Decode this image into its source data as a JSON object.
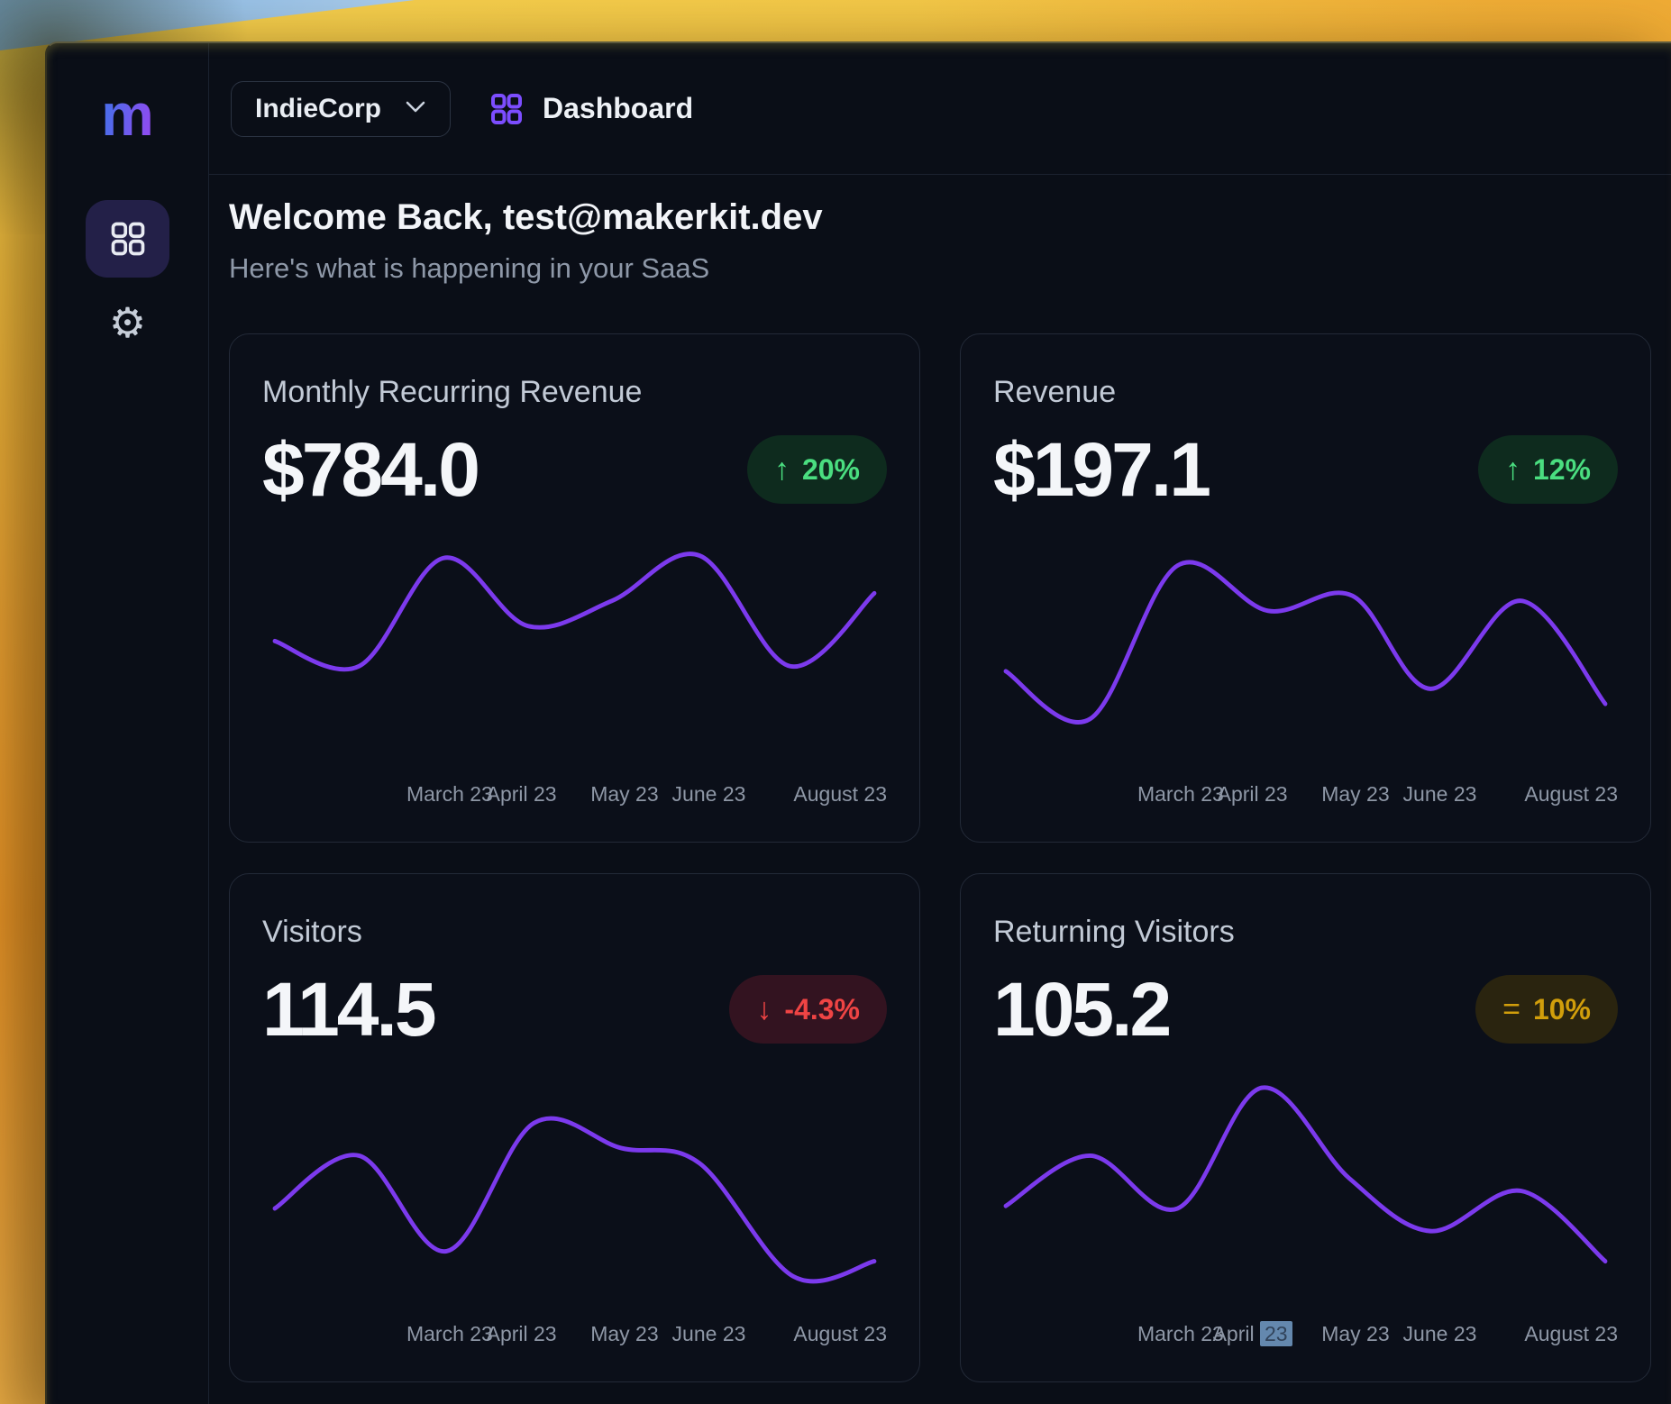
{
  "sidebar": {
    "logo": "m",
    "nav": [
      {
        "id": "dashboard",
        "active": true
      },
      {
        "id": "settings",
        "active": false
      }
    ]
  },
  "topbar": {
    "team_selector": {
      "label": "IndieCorp"
    },
    "page": {
      "label": "Dashboard"
    }
  },
  "header": {
    "title": "Welcome Back, test@makerkit.dev",
    "subtitle": "Here's what is happening in your SaaS"
  },
  "theme": {
    "line_color": "#7c3aed",
    "accent_purple": "#7c4dff",
    "badge_up_fg": "#4ade80",
    "badge_up_bg": "#0e2b1e",
    "badge_down_fg": "#ef4444",
    "badge_down_bg": "#331320",
    "badge_flat_fg": "#d19e0b",
    "badge_flat_bg": "#2a240f",
    "tick_selection_bg": "#6488ae"
  },
  "chart_data": [
    {
      "type": "line",
      "title": "Monthly Recurring Revenue",
      "value": "$784.0",
      "badge": {
        "label": "20%",
        "trend": "up"
      },
      "x_tick_labels": [
        {
          "text": "March 23",
          "pos_pct": 30
        },
        {
          "text": "April 23",
          "pos_pct": 41.5
        },
        {
          "text": "May 23",
          "pos_pct": 58
        },
        {
          "text": "June 23",
          "pos_pct": 71.5
        },
        {
          "text": "August 23",
          "pos_pct": null
        }
      ],
      "points": [
        {
          "x_pct": 2,
          "v": 54
        },
        {
          "x_pct": 15.5,
          "v": 44
        },
        {
          "x_pct": 29,
          "v": 87
        },
        {
          "x_pct": 42.5,
          "v": 60
        },
        {
          "x_pct": 56,
          "v": 70
        },
        {
          "x_pct": 70,
          "v": 88
        },
        {
          "x_pct": 84.5,
          "v": 44
        },
        {
          "x_pct": 98,
          "v": 73
        }
      ],
      "value_scale_note": "normalized 0-100, no y-axis shown"
    },
    {
      "type": "line",
      "title": "Revenue",
      "value": "$197.1",
      "badge": {
        "label": "12%",
        "trend": "up"
      },
      "x_tick_labels": [
        {
          "text": "March 23",
          "pos_pct": 30
        },
        {
          "text": "April 23",
          "pos_pct": 41.5
        },
        {
          "text": "May 23",
          "pos_pct": 58
        },
        {
          "text": "June 23",
          "pos_pct": 71.5
        },
        {
          "text": "August 23",
          "pos_pct": null
        }
      ],
      "points": [
        {
          "x_pct": 2,
          "v": 42
        },
        {
          "x_pct": 15.5,
          "v": 23
        },
        {
          "x_pct": 29.5,
          "v": 84
        },
        {
          "x_pct": 44,
          "v": 66
        },
        {
          "x_pct": 57.5,
          "v": 72
        },
        {
          "x_pct": 70,
          "v": 35
        },
        {
          "x_pct": 84.5,
          "v": 70
        },
        {
          "x_pct": 98,
          "v": 29
        }
      ],
      "value_scale_note": "normalized 0-100, no y-axis shown"
    },
    {
      "type": "line",
      "title": "Visitors",
      "value": "114.5",
      "badge": {
        "label": "-4.3%",
        "trend": "down"
      },
      "x_tick_labels": [
        {
          "text": "March 23",
          "pos_pct": 30
        },
        {
          "text": "April 23",
          "pos_pct": 41.5
        },
        {
          "text": "May 23",
          "pos_pct": 58
        },
        {
          "text": "June 23",
          "pos_pct": 71.5
        },
        {
          "text": "August 23",
          "pos_pct": null
        }
      ],
      "points": [
        {
          "x_pct": 2,
          "v": 43
        },
        {
          "x_pct": 15.5,
          "v": 64
        },
        {
          "x_pct": 29.5,
          "v": 26
        },
        {
          "x_pct": 43.5,
          "v": 77
        },
        {
          "x_pct": 57.5,
          "v": 67
        },
        {
          "x_pct": 70,
          "v": 61
        },
        {
          "x_pct": 85,
          "v": 16
        },
        {
          "x_pct": 98,
          "v": 22
        }
      ],
      "value_scale_note": "normalized 0-100, no y-axis shown"
    },
    {
      "type": "line",
      "title": "Returning Visitors",
      "value": "105.2",
      "badge": {
        "label": "10%",
        "trend": "flat"
      },
      "x_tick_labels": [
        {
          "text": "March 23",
          "pos_pct": 30
        },
        {
          "text": "April 23",
          "pos_pct": 41.5,
          "selected_part": "23"
        },
        {
          "text": "May 23",
          "pos_pct": 58
        },
        {
          "text": "June 23",
          "pos_pct": 71.5
        },
        {
          "text": "August 23",
          "pos_pct": null
        }
      ],
      "points": [
        {
          "x_pct": 2,
          "v": 44
        },
        {
          "x_pct": 15.5,
          "v": 64
        },
        {
          "x_pct": 29.5,
          "v": 43
        },
        {
          "x_pct": 43,
          "v": 91
        },
        {
          "x_pct": 57,
          "v": 55
        },
        {
          "x_pct": 70,
          "v": 34
        },
        {
          "x_pct": 84.5,
          "v": 50
        },
        {
          "x_pct": 98,
          "v": 22
        }
      ],
      "value_scale_note": "normalized 0-100, no y-axis shown"
    }
  ]
}
